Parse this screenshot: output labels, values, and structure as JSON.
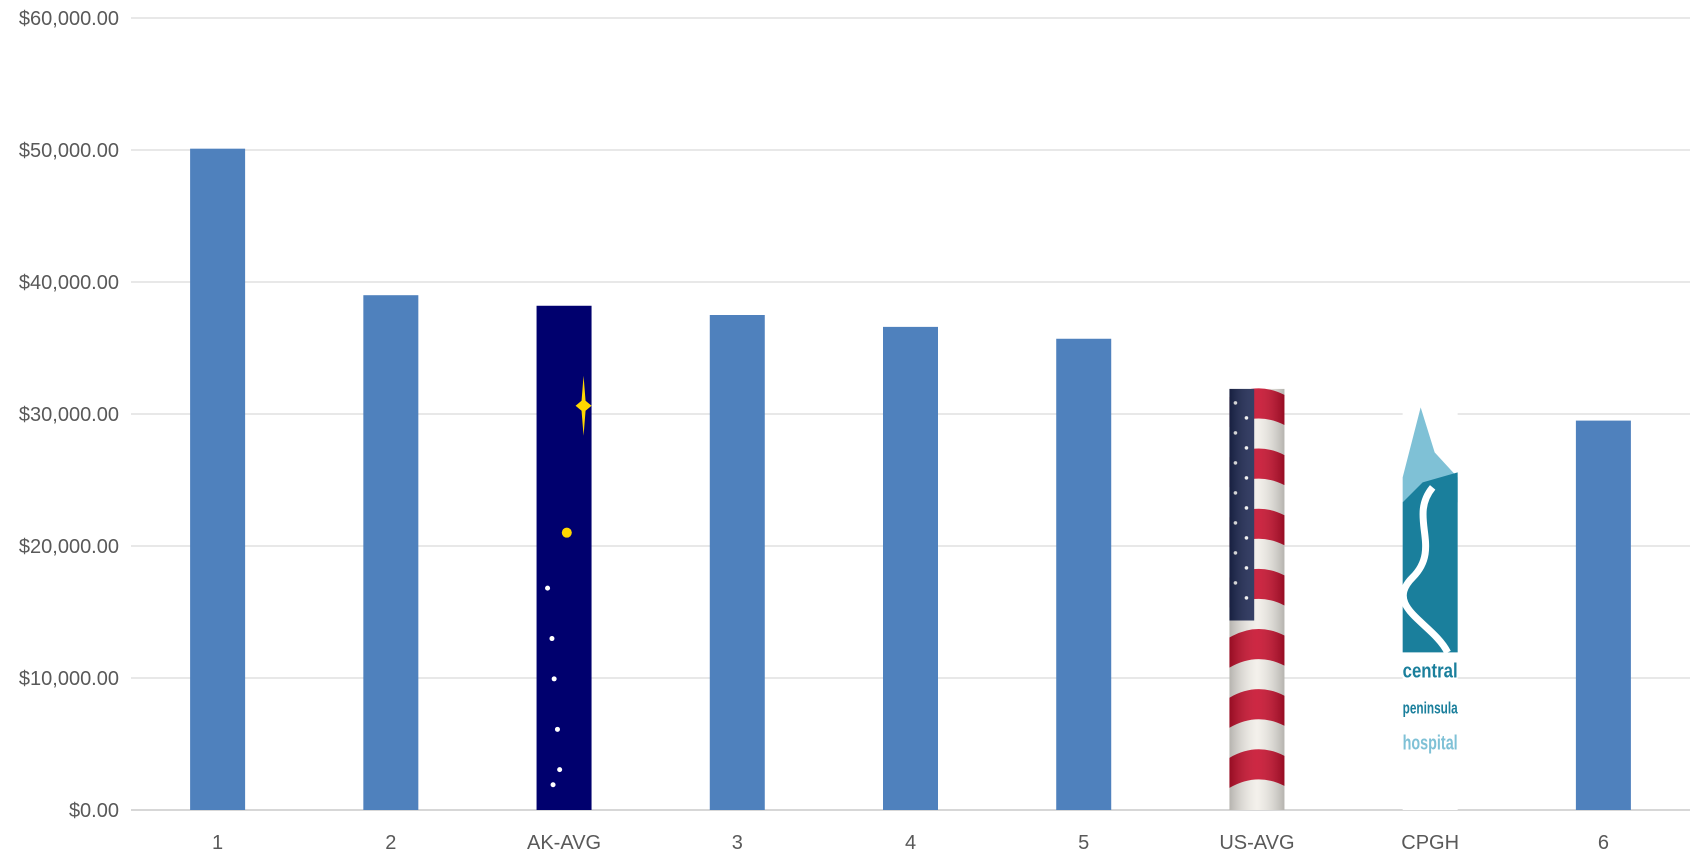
{
  "chart_data": {
    "type": "bar",
    "title": "",
    "xlabel": "",
    "ylabel": "",
    "ylim": [
      0,
      60000
    ],
    "yticks": [
      0,
      10000,
      20000,
      30000,
      40000,
      50000,
      60000
    ],
    "ytick_labels": [
      "$0.00",
      "$10,000.00",
      "$20,000.00",
      "$30,000.00",
      "$40,000.00",
      "$50,000.00",
      "$60,000.00"
    ],
    "grid": true,
    "categories": [
      "1",
      "2",
      "AK-AVG",
      "3",
      "4",
      "5",
      "US-AVG",
      "CPGH",
      "6"
    ],
    "values": [
      50100,
      39000,
      38200,
      37500,
      36600,
      35700,
      31900,
      30500,
      29500
    ],
    "bar_fills": [
      "plain",
      "plain",
      "alaska-flag-image",
      "plain",
      "plain",
      "plain",
      "us-flag-image",
      "cpgh-logo-image",
      "plain"
    ],
    "colors": {
      "bar": "#4F81BD",
      "grid": "#D9D9D9",
      "axis": "#BFBFBF",
      "text": "#595959",
      "alaska_blue": "#00006E",
      "alaska_gold": "#FFD700",
      "flag_red": "#C8102E",
      "flag_blue": "#1F2A55",
      "cpgh_teal": "#1A7F9C",
      "cpgh_light": "#7FC1D6"
    },
    "logo_text": [
      "central",
      "peninsula",
      "hospital"
    ]
  }
}
